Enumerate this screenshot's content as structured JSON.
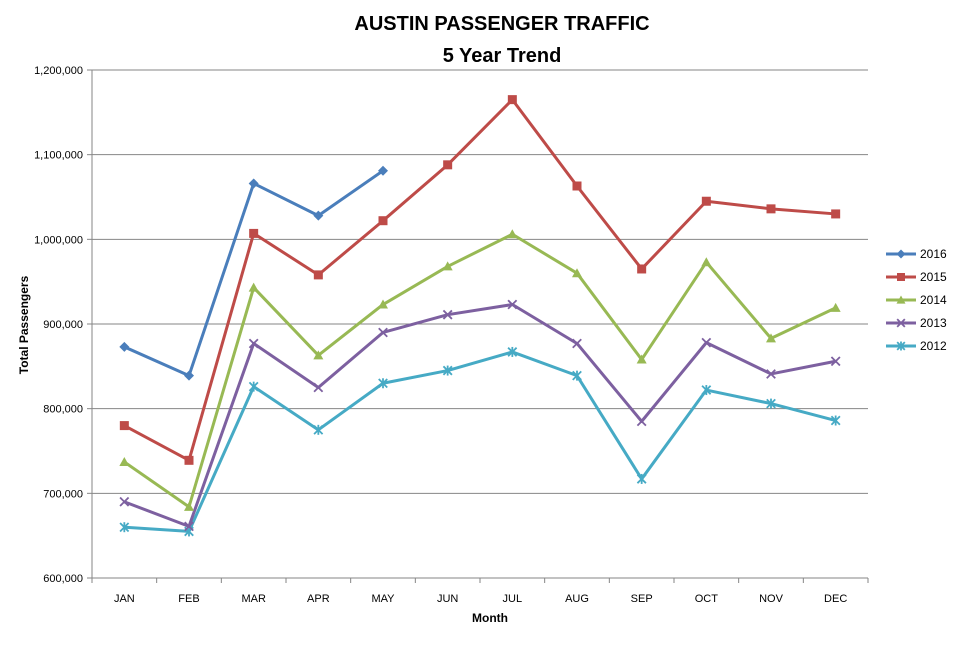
{
  "chart_data": {
    "type": "line",
    "title": "AUSTIN PASSENGER TRAFFIC",
    "subtitle": "5 Year Trend",
    "xlabel": "Month",
    "ylabel": "Total Passengers",
    "categories": [
      "JAN",
      "FEB",
      "MAR",
      "APR",
      "MAY",
      "JUN",
      "JUL",
      "AUG",
      "SEP",
      "OCT",
      "NOV",
      "DEC"
    ],
    "ylim": [
      600000,
      1200000
    ],
    "yticks": [
      600000,
      700000,
      800000,
      900000,
      1000000,
      1100000,
      1200000
    ],
    "ytick_labels": [
      "600,000",
      "700,000",
      "800,000",
      "900,000",
      "1,000,000",
      "1,100,000",
      "1,200,000"
    ],
    "grid": true,
    "legend_position": "right",
    "series": [
      {
        "name": "2016",
        "color": "#4a7ebb",
        "marker": "diamond",
        "values": [
          873000,
          839000,
          1066000,
          1028000,
          1081000,
          null,
          null,
          null,
          null,
          null,
          null,
          null
        ]
      },
      {
        "name": "2015",
        "color": "#be4b48",
        "marker": "square",
        "values": [
          780000,
          739000,
          1007000,
          958000,
          1022000,
          1088000,
          1165000,
          1063000,
          965000,
          1045000,
          1036000,
          1030000
        ]
      },
      {
        "name": "2014",
        "color": "#98b954",
        "marker": "triangle",
        "values": [
          737000,
          684000,
          943000,
          863000,
          923000,
          968000,
          1006000,
          960000,
          858000,
          973000,
          883000,
          919000
        ]
      },
      {
        "name": "2013",
        "color": "#7d60a0",
        "marker": "x",
        "values": [
          690000,
          661000,
          877000,
          825000,
          890000,
          911000,
          923000,
          877000,
          785000,
          878000,
          841000,
          856000
        ]
      },
      {
        "name": "2012",
        "color": "#46aac5",
        "marker": "star",
        "values": [
          660000,
          655000,
          826000,
          775000,
          830000,
          845000,
          867000,
          839000,
          717000,
          822000,
          806000,
          786000
        ]
      }
    ]
  }
}
